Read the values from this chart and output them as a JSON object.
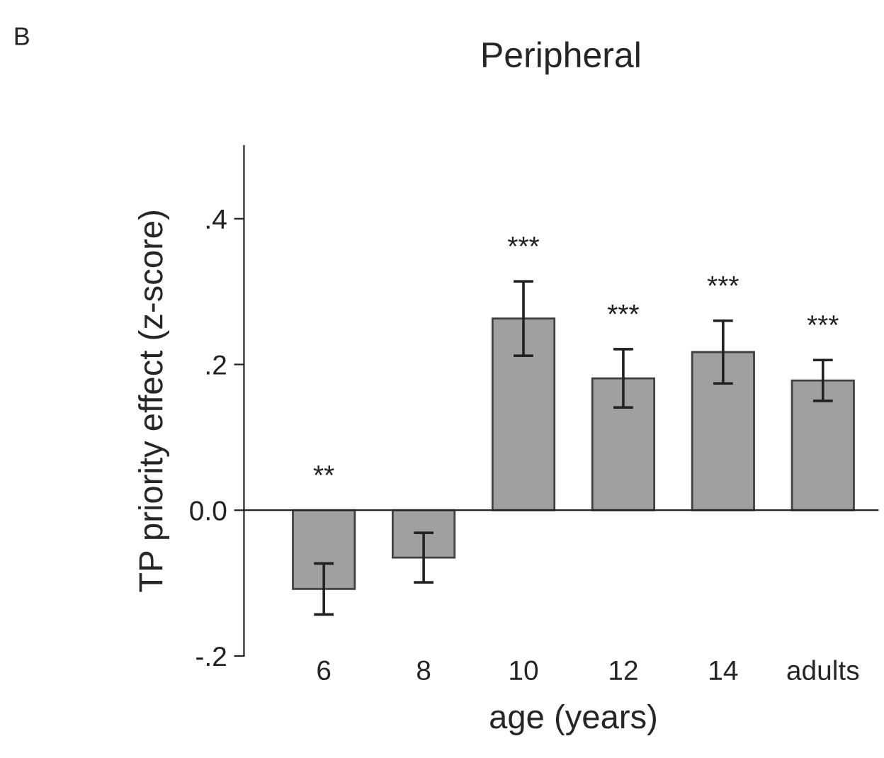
{
  "chart_data": {
    "type": "bar",
    "title": "Peripheral",
    "xlabel": "age (years)",
    "ylabel": "TP priority effect (z-score)",
    "categories": [
      "6",
      "8",
      "10",
      "12",
      "14",
      "adults"
    ],
    "values": [
      -0.108,
      -0.065,
      0.263,
      0.181,
      0.217,
      0.178
    ],
    "errors": [
      0.035,
      0.034,
      0.051,
      0.04,
      0.043,
      0.028
    ],
    "color": "#a0a0a0",
    "ylim": [
      -0.2,
      0.5
    ],
    "yticks": [
      {
        "value": -0.2,
        "label": "-.2"
      },
      {
        "value": 0,
        "label": "0.0"
      },
      {
        "value": 0.2,
        "label": ".2"
      },
      {
        "value": 0.4,
        "label": ".4"
      }
    ],
    "value_labels": [
      "**",
      null,
      "***",
      "***",
      "***",
      "***"
    ],
    "annotations": [
      "B"
    ],
    "legend": false
  }
}
